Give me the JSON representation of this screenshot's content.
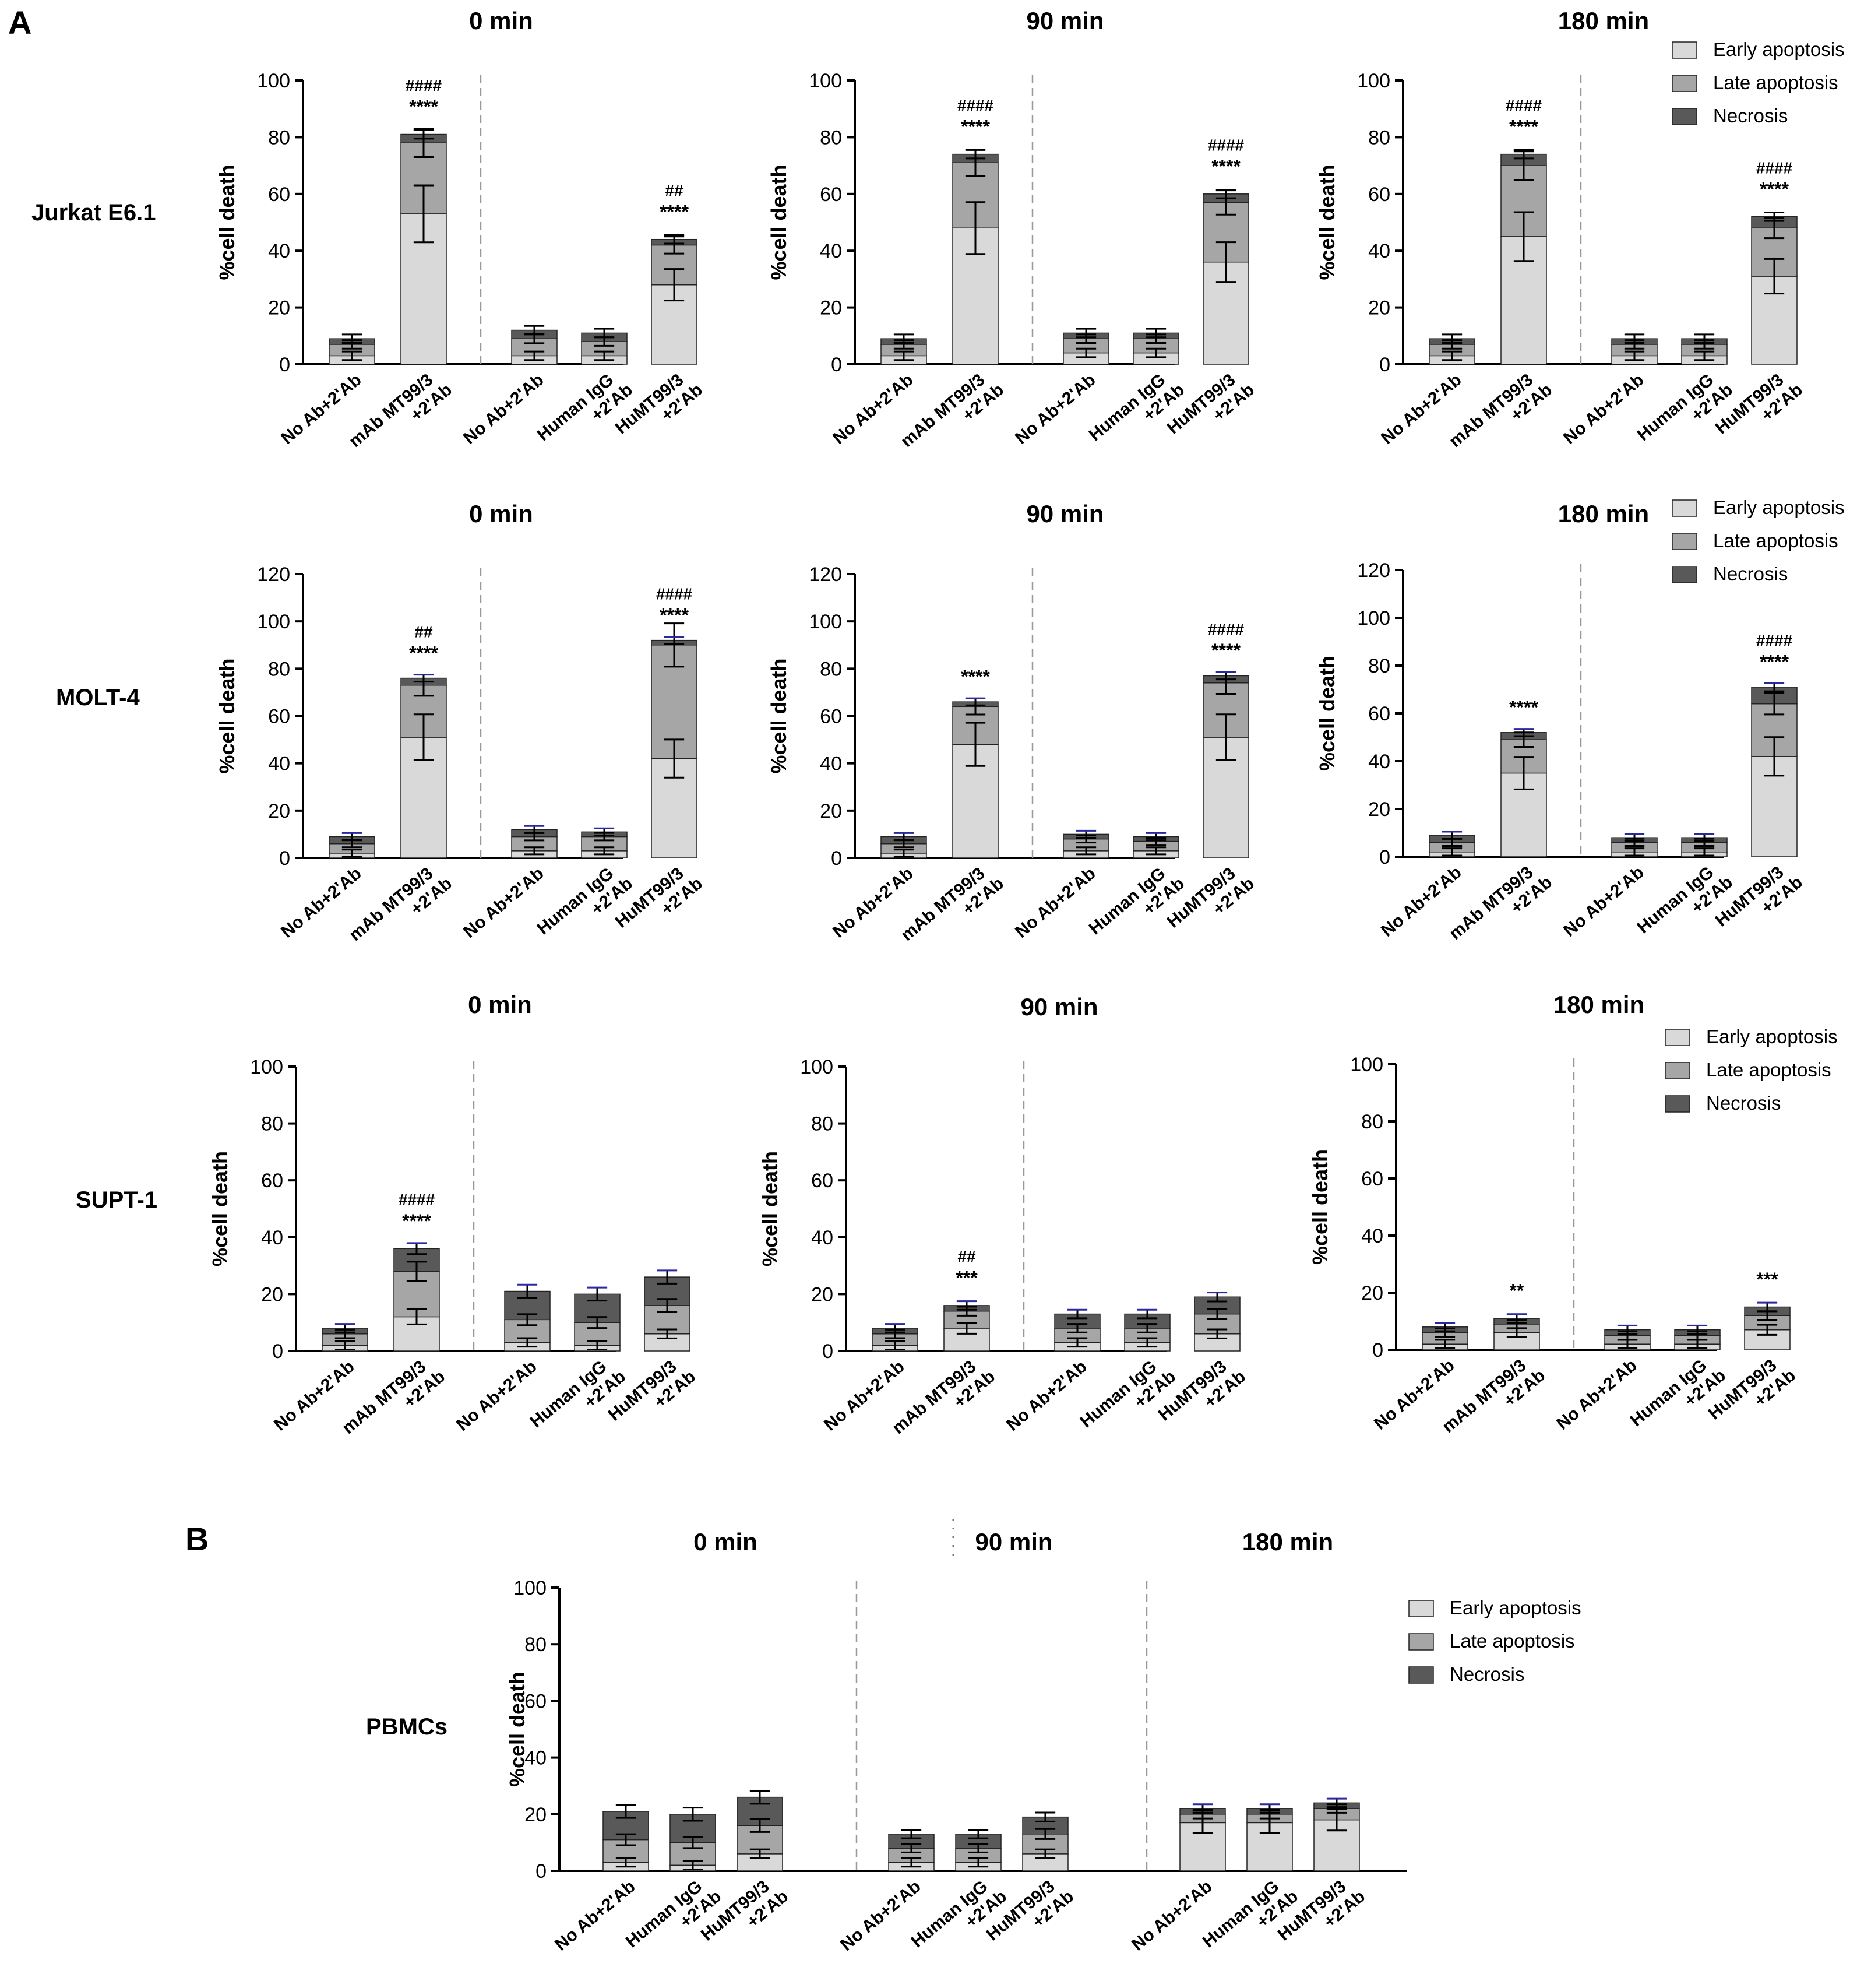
{
  "figure": {
    "panel_a_label": "A",
    "panel_b_label": "B"
  },
  "colors": {
    "early": "#d9d9d9",
    "late": "#a6a6a6",
    "necrosis": "#595959",
    "outline": "#222222",
    "error_blue": "#2a2aa0",
    "divider": "#9a9a9a"
  },
  "legend": {
    "early": "Early apoptosis",
    "late": "Late apoptosis",
    "necrosis": "Necrosis"
  },
  "chart_data": [
    {
      "type": "bar",
      "stacked": true,
      "cell_line": "Jurkat E6.1",
      "title": "0 min",
      "ylabel": "%cell death",
      "ylim": [
        0,
        100
      ],
      "yticks": [
        "0",
        "20",
        "40",
        "60",
        "80",
        "100"
      ],
      "categories": [
        "No Ab+2'Ab",
        "mAb MT99/3 +2'Ab",
        "No Ab+2'Ab",
        "Human IgG +2'Ab",
        "HuMT99/3 +2'Ab"
      ],
      "divider_after": 2,
      "series": [
        {
          "name": "Early apoptosis",
          "values": [
            3,
            53,
            3,
            3,
            28
          ]
        },
        {
          "name": "Late apoptosis",
          "values": [
            4,
            25,
            6,
            5,
            14
          ]
        },
        {
          "name": "Necrosis",
          "values": [
            2,
            3,
            3,
            3,
            2
          ]
        }
      ],
      "annotations": [
        {
          "category": 1,
          "stars": "****",
          "hash": "####"
        },
        {
          "category": 4,
          "stars": "****",
          "hash": "##"
        }
      ]
    },
    {
      "type": "bar",
      "stacked": true,
      "cell_line": "Jurkat E6.1",
      "title": "90 min",
      "ylabel": "%cell death",
      "ylim": [
        0,
        100
      ],
      "yticks": [
        "0",
        "20",
        "40",
        "60",
        "80",
        "100"
      ],
      "categories": [
        "No Ab+2'Ab",
        "mAb MT99/3 +2'Ab",
        "No Ab+2'Ab",
        "Human IgG +2'Ab",
        "HuMT99/3 +2'Ab"
      ],
      "divider_after": 2,
      "series": [
        {
          "name": "Early apoptosis",
          "values": [
            3,
            48,
            4,
            4,
            36
          ]
        },
        {
          "name": "Late apoptosis",
          "values": [
            4,
            23,
            5,
            5,
            21
          ]
        },
        {
          "name": "Necrosis",
          "values": [
            2,
            3,
            2,
            2,
            3
          ]
        }
      ],
      "annotations": [
        {
          "category": 1,
          "stars": "****",
          "hash": "####"
        },
        {
          "category": 4,
          "stars": "****",
          "hash": "####"
        }
      ]
    },
    {
      "type": "bar",
      "stacked": true,
      "cell_line": "Jurkat E6.1",
      "title": "180 min",
      "ylabel": "%cell death",
      "ylim": [
        0,
        100
      ],
      "yticks": [
        "0",
        "20",
        "40",
        "60",
        "80",
        "100"
      ],
      "categories": [
        "No Ab+2'Ab",
        "mAb MT99/3 +2'Ab",
        "No Ab+2'Ab",
        "Human IgG +2'Ab",
        "HuMT99/3 +2'Ab"
      ],
      "divider_after": 2,
      "series": [
        {
          "name": "Early apoptosis",
          "values": [
            3,
            45,
            3,
            3,
            31
          ]
        },
        {
          "name": "Late apoptosis",
          "values": [
            4,
            25,
            4,
            4,
            17
          ]
        },
        {
          "name": "Necrosis",
          "values": [
            2,
            4,
            2,
            2,
            4
          ]
        }
      ],
      "annotations": [
        {
          "category": 1,
          "stars": "****",
          "hash": "####"
        },
        {
          "category": 4,
          "stars": "****",
          "hash": "####"
        }
      ]
    },
    {
      "type": "bar",
      "stacked": true,
      "cell_line": "MOLT-4",
      "title": "0 min",
      "ylabel": "%cell death",
      "ylim": [
        0,
        120
      ],
      "yticks": [
        "0",
        "20",
        "40",
        "60",
        "80",
        "100",
        "120"
      ],
      "categories": [
        "No Ab+2'Ab",
        "mAb MT99/3 +2'Ab",
        "No Ab+2'Ab",
        "Human IgG +2'Ab",
        "HuMT99/3 +2'Ab"
      ],
      "divider_after": 2,
      "series": [
        {
          "name": "Early apoptosis",
          "values": [
            2,
            51,
            3,
            3,
            42
          ]
        },
        {
          "name": "Late apoptosis",
          "values": [
            4,
            22,
            6,
            6,
            48
          ]
        },
        {
          "name": "Necrosis",
          "values": [
            3,
            3,
            3,
            2,
            2
          ]
        }
      ],
      "annotations": [
        {
          "category": 1,
          "stars": "****",
          "hash": "##"
        },
        {
          "category": 4,
          "stars": "****",
          "hash": "####"
        }
      ]
    },
    {
      "type": "bar",
      "stacked": true,
      "cell_line": "MOLT-4",
      "title": "90 min",
      "ylabel": "%cell death",
      "ylim": [
        0,
        120
      ],
      "yticks": [
        "0",
        "20",
        "40",
        "60",
        "80",
        "100",
        "120"
      ],
      "categories": [
        "No Ab+2'Ab",
        "mAb MT99/3 +2'Ab",
        "No Ab+2'Ab",
        "Human IgG +2'Ab",
        "HuMT99/3 +2'Ab"
      ],
      "divider_after": 2,
      "series": [
        {
          "name": "Early apoptosis",
          "values": [
            2,
            48,
            3,
            3,
            51
          ]
        },
        {
          "name": "Late apoptosis",
          "values": [
            4,
            16,
            5,
            4,
            23
          ]
        },
        {
          "name": "Necrosis",
          "values": [
            3,
            2,
            2,
            2,
            3
          ]
        }
      ],
      "annotations": [
        {
          "category": 1,
          "stars": "****",
          "hash": ""
        },
        {
          "category": 4,
          "stars": "****",
          "hash": "####"
        }
      ]
    },
    {
      "type": "bar",
      "stacked": true,
      "cell_line": "MOLT-4",
      "title": "180 min",
      "ylabel": "%cell death",
      "ylim": [
        0,
        120
      ],
      "yticks": [
        "0",
        "20",
        "40",
        "60",
        "80",
        "100",
        "120"
      ],
      "categories": [
        "No Ab+2'Ab",
        "mAb MT99/3 +2'Ab",
        "No Ab+2'Ab",
        "Human IgG +2'Ab",
        "HuMT99/3 +2'Ab"
      ],
      "divider_after": 2,
      "series": [
        {
          "name": "Early apoptosis",
          "values": [
            2,
            35,
            2,
            2,
            42
          ]
        },
        {
          "name": "Late apoptosis",
          "values": [
            4,
            14,
            4,
            4,
            22
          ]
        },
        {
          "name": "Necrosis",
          "values": [
            3,
            3,
            2,
            2,
            7
          ]
        }
      ],
      "annotations": [
        {
          "category": 1,
          "stars": "****",
          "hash": ""
        },
        {
          "category": 4,
          "stars": "****",
          "hash": "####"
        }
      ]
    },
    {
      "type": "bar",
      "stacked": true,
      "cell_line": "SUPT-1",
      "title": "0 min",
      "ylabel": "%cell death",
      "ylim": [
        0,
        100
      ],
      "yticks": [
        "0",
        "20",
        "40",
        "60",
        "80",
        "100"
      ],
      "categories": [
        "No Ab+2'Ab",
        "mAb MT99/3 +2'Ab",
        "No Ab+2'Ab",
        "Human IgG +2'Ab",
        "HuMT99/3 +2'Ab"
      ],
      "divider_after": 2,
      "series": [
        {
          "name": "Early apoptosis",
          "values": [
            2,
            12,
            3,
            2,
            6
          ]
        },
        {
          "name": "Late apoptosis",
          "values": [
            4,
            16,
            8,
            8,
            10
          ]
        },
        {
          "name": "Necrosis",
          "values": [
            2,
            8,
            10,
            10,
            10
          ]
        }
      ],
      "annotations": [
        {
          "category": 1,
          "stars": "****",
          "hash": "####"
        }
      ]
    },
    {
      "type": "bar",
      "stacked": true,
      "cell_line": "SUPT-1",
      "title": "90 min",
      "ylabel": "%cell death",
      "ylim": [
        0,
        100
      ],
      "yticks": [
        "0",
        "20",
        "40",
        "60",
        "80",
        "100"
      ],
      "categories": [
        "No Ab+2'Ab",
        "mAb MT99/3 +2'Ab",
        "No Ab+2'Ab",
        "Human IgG +2'Ab",
        "HuMT99/3 +2'Ab"
      ],
      "divider_after": 2,
      "series": [
        {
          "name": "Early apoptosis",
          "values": [
            2,
            8,
            3,
            3,
            6
          ]
        },
        {
          "name": "Late apoptosis",
          "values": [
            4,
            6,
            5,
            5,
            7
          ]
        },
        {
          "name": "Necrosis",
          "values": [
            2,
            2,
            5,
            5,
            6
          ]
        }
      ],
      "annotations": [
        {
          "category": 1,
          "stars": "***",
          "hash": "##"
        }
      ]
    },
    {
      "type": "bar",
      "stacked": true,
      "cell_line": "SUPT-1",
      "title": "180 min",
      "ylabel": "%cell death",
      "ylim": [
        0,
        100
      ],
      "yticks": [
        "0",
        "20",
        "40",
        "60",
        "80",
        "100"
      ],
      "categories": [
        "No Ab+2'Ab",
        "mAb MT99/3 +2'Ab",
        "No Ab+2'Ab",
        "Human IgG +2'Ab",
        "HuMT99/3 +2'Ab"
      ],
      "divider_after": 2,
      "series": [
        {
          "name": "Early apoptosis",
          "values": [
            2,
            6,
            2,
            2,
            7
          ]
        },
        {
          "name": "Late apoptosis",
          "values": [
            4,
            3,
            3,
            3,
            5
          ]
        },
        {
          "name": "Necrosis",
          "values": [
            2,
            2,
            2,
            2,
            3
          ]
        }
      ],
      "annotations": [
        {
          "category": 1,
          "stars": "**",
          "hash": ""
        },
        {
          "category": 4,
          "stars": "***",
          "hash": ""
        }
      ]
    },
    {
      "type": "bar",
      "stacked": true,
      "cell_line": "PBMCs",
      "titles": [
        "0 min",
        "90 min",
        "180 min"
      ],
      "ylabel": "%cell death",
      "ylim": [
        0,
        100
      ],
      "yticks": [
        "0",
        "20",
        "40",
        "60",
        "80",
        "100"
      ],
      "categories": [
        "No Ab+2'Ab",
        "Human IgG +2'Ab",
        "HuMT99/3 +2'Ab",
        "No Ab+2'Ab",
        "Human IgG +2'Ab",
        "HuMT99/3 +2'Ab",
        "No Ab+2'Ab",
        "Human IgG +2'Ab",
        "HuMT99/3 +2'Ab"
      ],
      "groups": [
        3,
        3,
        3
      ],
      "series": [
        {
          "name": "Early apoptosis",
          "values": [
            3,
            2,
            6,
            3,
            3,
            6,
            17,
            17,
            18
          ]
        },
        {
          "name": "Late apoptosis",
          "values": [
            8,
            8,
            10,
            5,
            5,
            7,
            3,
            3,
            4
          ]
        },
        {
          "name": "Necrosis",
          "values": [
            10,
            10,
            10,
            5,
            5,
            6,
            2,
            2,
            2
          ]
        }
      ]
    }
  ]
}
